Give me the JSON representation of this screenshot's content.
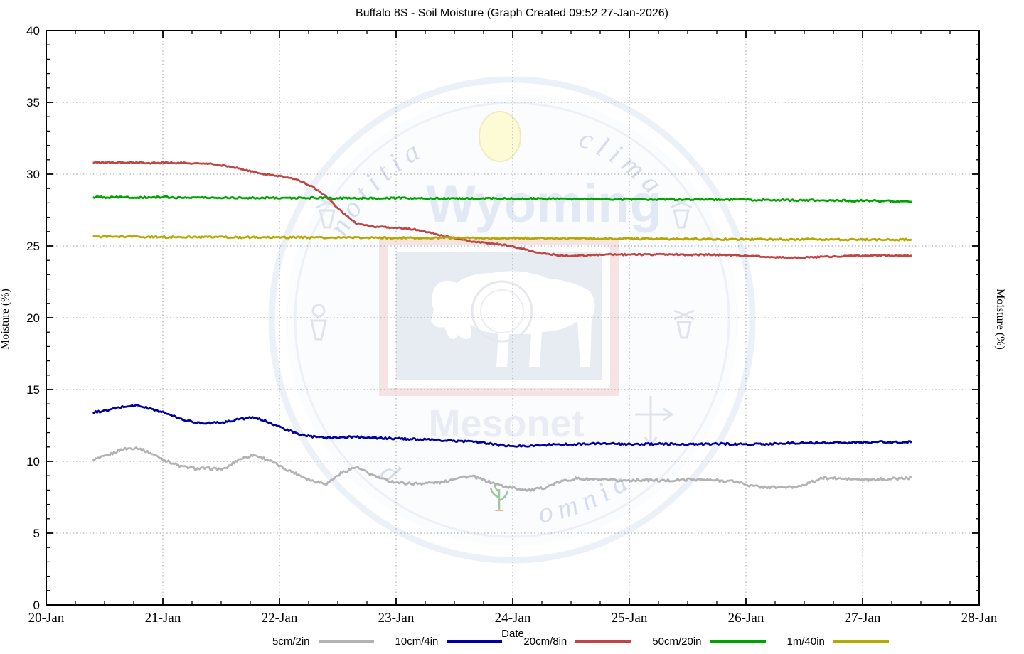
{
  "chart_data": {
    "type": "line",
    "title": "Buffalo 8S - Soil Moisture (Graph Created 09:52 27-Jan-2026)",
    "xlabel": "Date",
    "ylabel_left": "Moisture (%)",
    "ylabel_right": "Moisture (%)",
    "x_axis": {
      "tick_labels": [
        "20-Jan",
        "21-Jan",
        "22-Jan",
        "23-Jan",
        "24-Jan",
        "25-Jan",
        "26-Jan",
        "27-Jan",
        "28-Jan"
      ],
      "range_days": [
        0,
        8
      ],
      "minor_tick_step_days": 0.25,
      "grid": true
    },
    "y_axis": {
      "ticks": [
        0,
        5,
        10,
        15,
        20,
        25,
        30,
        35,
        40
      ],
      "range": [
        0,
        40
      ],
      "minor_tick_step": 1,
      "grid": true
    },
    "legend_position": "bottom",
    "data_start_day": 0.4,
    "data_end_day": 7.42,
    "series": [
      {
        "name": "5cm/2in",
        "color": "#b3b3b3",
        "noise": 0.09,
        "values": [
          10.1,
          10.4,
          10.85,
          10.95,
          10.55,
          10.05,
          9.65,
          9.5,
          9.5,
          9.45,
          10.15,
          10.45,
          10.1,
          9.55,
          9.1,
          8.65,
          8.45,
          9.2,
          9.6,
          9.1,
          8.7,
          8.5,
          8.45,
          8.5,
          8.55,
          8.9,
          8.95,
          8.6,
          8.3,
          8.1,
          8.0,
          8.2,
          8.6,
          8.8,
          8.75,
          8.7,
          8.65,
          8.7,
          8.7,
          8.65,
          8.7,
          8.75,
          8.7,
          8.65,
          8.6,
          8.3,
          8.2,
          8.2,
          8.2,
          8.5,
          8.85,
          8.8,
          8.75,
          8.7,
          8.75,
          8.8,
          8.85
        ]
      },
      {
        "name": "10cm/4in",
        "color": "#0000a0",
        "noise": 0.07,
        "values": [
          13.4,
          13.55,
          13.8,
          13.9,
          13.65,
          13.35,
          12.95,
          12.7,
          12.68,
          12.72,
          12.95,
          13.05,
          12.75,
          12.3,
          11.9,
          11.72,
          11.65,
          11.68,
          11.7,
          11.65,
          11.6,
          11.58,
          11.55,
          11.5,
          11.45,
          11.4,
          11.4,
          11.25,
          11.1,
          11.05,
          11.1,
          11.15,
          11.18,
          11.2,
          11.22,
          11.25,
          11.2,
          11.18,
          11.2,
          11.22,
          11.2,
          11.18,
          11.2,
          11.22,
          11.2,
          11.18,
          11.2,
          11.25,
          11.28,
          11.3,
          11.3,
          11.32,
          11.3,
          11.32,
          11.35,
          11.32,
          11.35
        ]
      },
      {
        "name": "20cm/8in",
        "color": "#c04545",
        "noise": 0.05,
        "values": [
          30.8,
          30.82,
          30.8,
          30.8,
          30.78,
          30.8,
          30.78,
          30.75,
          30.72,
          30.6,
          30.4,
          30.15,
          29.95,
          29.85,
          29.6,
          29.15,
          28.4,
          27.4,
          26.6,
          26.35,
          26.3,
          26.25,
          26.15,
          25.95,
          25.7,
          25.5,
          25.3,
          25.2,
          25.1,
          24.9,
          24.65,
          24.45,
          24.35,
          24.3,
          24.35,
          24.4,
          24.4,
          24.4,
          24.4,
          24.42,
          24.4,
          24.38,
          24.4,
          24.38,
          24.35,
          24.3,
          24.25,
          24.2,
          24.18,
          24.2,
          24.25,
          24.28,
          24.3,
          24.32,
          24.35,
          24.32,
          24.33
        ]
      },
      {
        "name": "50cm/20in",
        "color": "#00a400",
        "noise": 0.06,
        "values": [
          28.4,
          28.38,
          28.4,
          28.37,
          28.38,
          28.4,
          28.36,
          28.38,
          28.35,
          28.37,
          28.36,
          28.34,
          28.36,
          28.35,
          28.33,
          28.35,
          28.34,
          28.32,
          28.34,
          28.33,
          28.31,
          28.33,
          28.32,
          28.3,
          28.32,
          28.3,
          28.29,
          28.31,
          28.3,
          28.28,
          28.3,
          28.28,
          28.27,
          28.28,
          28.26,
          28.27,
          28.25,
          28.26,
          28.24,
          28.25,
          28.23,
          28.24,
          28.22,
          28.23,
          28.21,
          28.22,
          28.2,
          28.2,
          28.18,
          28.19,
          28.17,
          28.18,
          28.15,
          28.16,
          28.13,
          28.12,
          28.1
        ]
      },
      {
        "name": "1m/40in",
        "color": "#b5a800",
        "noise": 0.06,
        "values": [
          25.65,
          25.64,
          25.65,
          25.63,
          25.64,
          25.62,
          25.63,
          25.62,
          25.61,
          25.62,
          25.6,
          25.61,
          25.6,
          25.59,
          25.6,
          25.58,
          25.59,
          25.58,
          25.57,
          25.58,
          25.56,
          25.57,
          25.56,
          25.55,
          25.56,
          25.54,
          25.55,
          25.54,
          25.53,
          25.54,
          25.52,
          25.53,
          25.52,
          25.51,
          25.52,
          25.5,
          25.51,
          25.5,
          25.49,
          25.5,
          25.48,
          25.49,
          25.48,
          25.47,
          25.48,
          25.46,
          25.47,
          25.46,
          25.45,
          25.46,
          25.45,
          25.44,
          25.45,
          25.44,
          25.43,
          25.44,
          25.45
        ]
      }
    ]
  },
  "watermark": {
    "arc_top_left": "notitia",
    "arc_top_right": "clima",
    "arc_bottom_left": "d",
    "arc_bottom_right": "omnia",
    "big_text": "Wyoming",
    "sub_text": "Mesonet",
    "faint_blue": "#dde5f2",
    "faint_text_blue": "#ccd6ea",
    "flag_red": "#f2cfcf",
    "flag_blue": "#e3e7f0"
  }
}
